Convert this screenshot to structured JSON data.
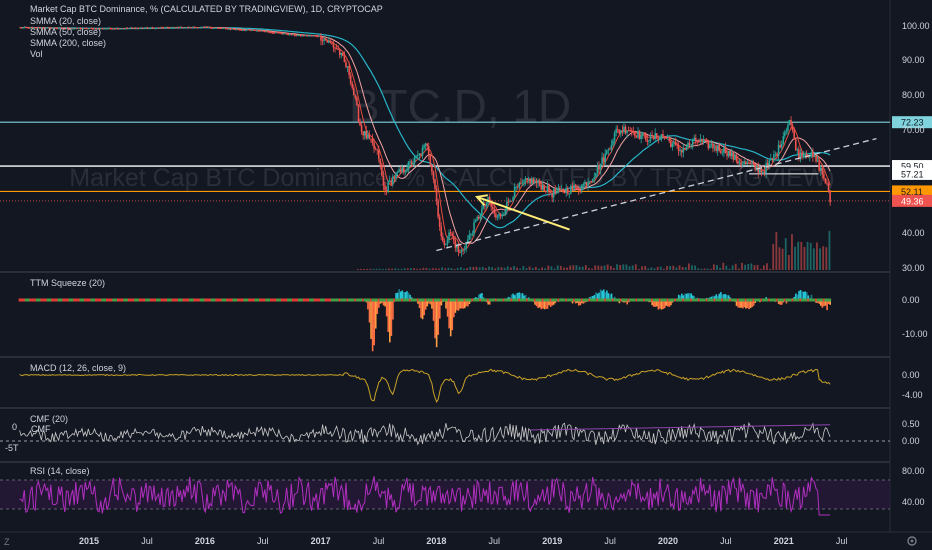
{
  "colors": {
    "background": "#131722",
    "up": "#26a69a",
    "down": "#ef5350",
    "sma20": "#e74c3c",
    "sma50": "#f5a3a3",
    "sma200": "#26b5c8",
    "res72": "#7fd3dc",
    "white_line": "#ffffff",
    "orange_line": "#ff9800",
    "arrow": "#ffeb78",
    "macd": "#c9a227",
    "cmf": "#c8c8c8",
    "cmf_avg": "#8e44ad",
    "rsi": "#b02fc0",
    "rsi_band": "#2b1a3a",
    "separator": "#2a2e39",
    "squeeze_on": "#e53935",
    "squeeze_off": "#43a047",
    "hist_pos_strong": "#26c6da",
    "hist_pos_weak": "#1b7f8c",
    "hist_neg_strong": "#ff7043",
    "hist_neg_weak": "#ff9e42"
  },
  "header": {
    "title": "Market Cap BTC Dominance, % (CALCULATED BY TRADINGVIEW), 1D, CRYPTOCAP",
    "sma20": "SMMA (20, close)",
    "sma50": "SMMA (50, close)",
    "sma200": "SMMA (200, close)",
    "vol": "Vol",
    "watermark1": "BTC.D, 1D",
    "watermark2": "Market Cap BTC Dominance, % (CALCULATED BY TRADINGVIEW)"
  },
  "panes": {
    "squeeze": "TTM Squeeze (20)",
    "macd": "MACD (12, 26, close, 9)",
    "cmf": "CMF (20)",
    "rsi": "RSI (14, close)",
    "cmf_left_top": "0",
    "cmf_left_sub": "CMF",
    "cmf_left_bottom": "-5T"
  },
  "price_levels": [
    {
      "value": 72.23,
      "label": "72.23",
      "color": "#7fd3dc",
      "text_color": "#131722"
    },
    {
      "value": 59.5,
      "label": "59.50",
      "color": "#ffffff",
      "text_color": "#131722"
    },
    {
      "value": 57.21,
      "label": "57.21",
      "color": "#ffffff",
      "text_color": "#131722"
    },
    {
      "value": 52.11,
      "label": "52.11",
      "color": "#ff9800",
      "text_color": "#131722"
    },
    {
      "value": 49.36,
      "label": "49.36",
      "color": "#ef5350",
      "text_color": "#ffffff"
    }
  ],
  "axes": {
    "price_ticks": [
      "100.00",
      "90.00",
      "80.00",
      "70.00",
      "40.00",
      "30.00"
    ],
    "price_tick_values": [
      100,
      90,
      80,
      70,
      40,
      30
    ],
    "squeeze_ticks": [
      "0.00",
      "-10.00"
    ],
    "squeeze_tick_values": [
      0,
      -10
    ],
    "macd_ticks": [
      "0.00",
      "-4.00"
    ],
    "macd_tick_values": [
      0,
      -4
    ],
    "cmf_ticks": [
      "0.50",
      "0.00"
    ],
    "cmf_tick_values": [
      0.5,
      0
    ],
    "rsi_ticks": [
      "80.00",
      "40.00"
    ],
    "rsi_tick_values": [
      80,
      40
    ],
    "time_labels": [
      "2015",
      "Jul",
      "2016",
      "Jul",
      "2017",
      "Jul",
      "2018",
      "Jul",
      "2019",
      "Jul",
      "2020",
      "Jul",
      "2021",
      "Jul"
    ],
    "time_values": [
      2015.0,
      2015.5,
      2016.0,
      2016.5,
      2017.0,
      2017.5,
      2018.0,
      2018.5,
      2019.0,
      2019.5,
      2020.0,
      2020.5,
      2021.0,
      2021.5
    ]
  },
  "footer_icon": "settings-icon",
  "chart_data": {
    "type": "line",
    "title": "Market Cap BTC Dominance, % (CALCULATED BY TRADINGVIEW), 1D, CRYPTOCAP",
    "xlabel": "",
    "ylabel": "",
    "xlim": [
      2014.3,
      2021.9
    ],
    "ylim": [
      28,
      104
    ],
    "price_keypoints": [
      [
        2014.4,
        99.5
      ],
      [
        2015.0,
        99.2
      ],
      [
        2015.5,
        99.4
      ],
      [
        2016.0,
        99.6
      ],
      [
        2016.5,
        98.5
      ],
      [
        2016.8,
        97.2
      ],
      [
        2017.0,
        97.0
      ],
      [
        2017.15,
        93.0
      ],
      [
        2017.25,
        86.0
      ],
      [
        2017.35,
        70.0
      ],
      [
        2017.42,
        67.0
      ],
      [
        2017.5,
        62.5
      ],
      [
        2017.55,
        52.0
      ],
      [
        2017.62,
        56.0
      ],
      [
        2017.72,
        58.5
      ],
      [
        2017.85,
        62.5
      ],
      [
        2017.92,
        66.0
      ],
      [
        2017.98,
        55.0
      ],
      [
        2018.05,
        36.5
      ],
      [
        2018.12,
        40.0
      ],
      [
        2018.2,
        34.0
      ],
      [
        2018.28,
        38.5
      ],
      [
        2018.38,
        46.0
      ],
      [
        2018.45,
        49.5
      ],
      [
        2018.52,
        44.0
      ],
      [
        2018.58,
        46.5
      ],
      [
        2018.68,
        52.5
      ],
      [
        2018.8,
        55.5
      ],
      [
        2018.9,
        54.0
      ],
      [
        2019.0,
        51.5
      ],
      [
        2019.12,
        52.5
      ],
      [
        2019.25,
        53.5
      ],
      [
        2019.35,
        56.5
      ],
      [
        2019.45,
        62.0
      ],
      [
        2019.55,
        69.5
      ],
      [
        2019.65,
        70.5
      ],
      [
        2019.75,
        68.5
      ],
      [
        2019.85,
        67.5
      ],
      [
        2019.95,
        68.5
      ],
      [
        2020.1,
        64.0
      ],
      [
        2020.25,
        67.0
      ],
      [
        2020.4,
        65.0
      ],
      [
        2020.5,
        64.0
      ],
      [
        2020.6,
        61.0
      ],
      [
        2020.72,
        59.5
      ],
      [
        2020.82,
        58.0
      ],
      [
        2020.9,
        61.5
      ],
      [
        2020.95,
        64.0
      ],
      [
        2021.0,
        69.0
      ],
      [
        2021.05,
        73.0
      ],
      [
        2021.12,
        63.0
      ],
      [
        2021.2,
        63.5
      ],
      [
        2021.28,
        61.0
      ],
      [
        2021.33,
        57.5
      ],
      [
        2021.37,
        54.0
      ],
      [
        2021.4,
        49.4
      ]
    ],
    "trendline": {
      "x": [
        2018.0,
        2021.8
      ],
      "y": [
        35.0,
        67.5
      ]
    },
    "arrow": {
      "from": [
        2019.15,
        41.0
      ],
      "to": [
        2018.35,
        50.5
      ]
    }
  }
}
